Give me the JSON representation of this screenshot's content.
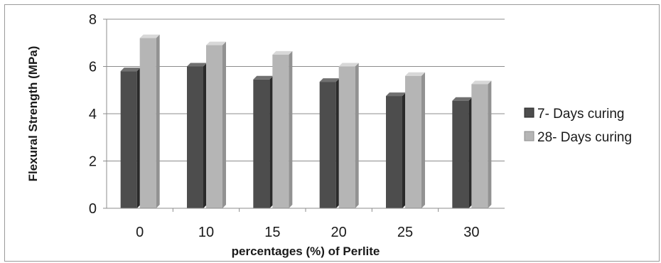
{
  "chart_data": {
    "type": "bar",
    "categories": [
      "0",
      "10",
      "15",
      "20",
      "25",
      "30"
    ],
    "series": [
      {
        "name": "7- Days curing",
        "values": [
          5.8,
          6.0,
          5.45,
          5.35,
          4.75,
          4.55
        ],
        "color": "#4d4d4d"
      },
      {
        "name": "28- Days curing",
        "values": [
          7.2,
          6.9,
          6.5,
          6.0,
          5.6,
          5.25
        ],
        "color": "#b5b5b5"
      }
    ],
    "title": "",
    "xlabel": "percentages (%) of Perlite",
    "ylabel": "Flexural Strength  (MPa)",
    "ylim": [
      0,
      8
    ],
    "yticks": [
      "0",
      "2",
      "4",
      "6",
      "8"
    ],
    "grid": true,
    "legend_position": "right"
  }
}
